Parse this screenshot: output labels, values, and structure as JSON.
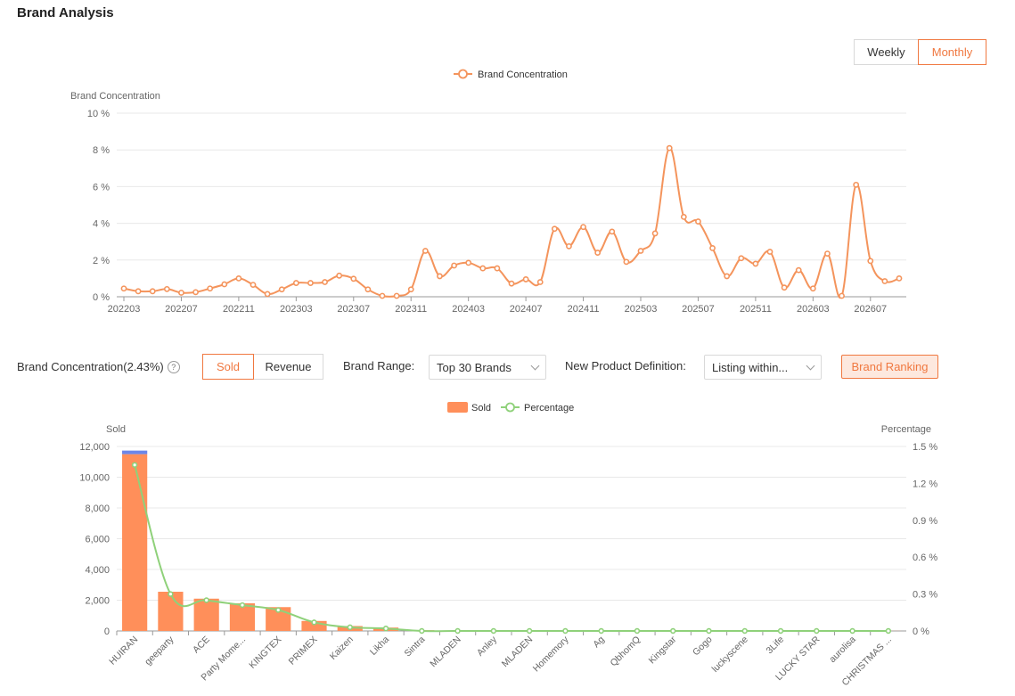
{
  "page": {
    "title": "Brand Analysis"
  },
  "period_toggle": {
    "weekly": "Weekly",
    "monthly": "Monthly",
    "active": "monthly"
  },
  "concentration_chart": {
    "legend": "Brand Concentration",
    "color": "#f4945c",
    "chart_data": {
      "type": "line",
      "ylabel": "Brand Concentration",
      "ylim": [
        0,
        10
      ],
      "y_ticks": [
        "0 %",
        "2 %",
        "4 %",
        "6 %",
        "8 %",
        "10 %"
      ],
      "x_tick_labels": [
        "202203",
        "202207",
        "202211",
        "202303",
        "202307",
        "202311",
        "202403",
        "202407",
        "202411",
        "202503",
        "202507",
        "202511",
        "202603",
        "202607"
      ],
      "x": [
        "202203",
        "202204",
        "202205",
        "202206",
        "202207",
        "202208",
        "202209",
        "202210",
        "202211",
        "202212",
        "202301",
        "202302",
        "202303",
        "202304",
        "202305",
        "202306",
        "202307",
        "202308",
        "202309",
        "202310",
        "202311",
        "202312",
        "202401",
        "202402",
        "202403",
        "202404",
        "202405",
        "202406",
        "202407",
        "202408",
        "202409",
        "202410",
        "202411",
        "202412",
        "202501",
        "202502",
        "202503",
        "202504",
        "202505",
        "202506",
        "202507",
        "202508",
        "202509",
        "202510",
        "202511",
        "202512",
        "202601",
        "202602",
        "202603",
        "202604",
        "202605",
        "202606",
        "202607",
        "202608",
        "202609"
      ],
      "series": [
        {
          "name": "Brand Concentration",
          "values": [
            0.45,
            0.3,
            0.3,
            0.42,
            0.22,
            0.25,
            0.45,
            0.68,
            1.0,
            0.65,
            0.15,
            0.4,
            0.75,
            0.75,
            0.8,
            1.15,
            0.98,
            0.4,
            0.05,
            0.05,
            0.4,
            2.5,
            1.12,
            1.7,
            1.85,
            1.55,
            1.55,
            0.72,
            0.95,
            0.8,
            3.7,
            2.75,
            3.8,
            2.4,
            3.55,
            1.9,
            2.5,
            3.45,
            8.1,
            4.35,
            4.1,
            2.65,
            1.12,
            2.1,
            1.8,
            2.45,
            0.5,
            1.45,
            0.45,
            2.35,
            0.05,
            6.1,
            1.95,
            0.85,
            1.0
          ]
        }
      ]
    }
  },
  "controls": {
    "concentration_label": "Brand Concentration(2.43%)",
    "help_icon": "?",
    "metric": {
      "sold": "Sold",
      "revenue": "Revenue",
      "active": "sold"
    },
    "brand_range_label": "Brand Range:",
    "brand_range_value": "Top 30 Brands",
    "new_product_label": "New Product Definition:",
    "new_product_value": "Listing within...",
    "ranking_button": "Brand Ranking"
  },
  "ranking_chart": {
    "legend_sold": "Sold",
    "legend_pct": "Percentage",
    "bar_color": "#ff8f5a",
    "bar_top_color": "#6c86e8",
    "line_color": "#8fd17a",
    "chart_data": {
      "type": "bar",
      "ylabel": "Sold",
      "y2label": "Percentage",
      "ylim": [
        0,
        12000
      ],
      "y2lim": [
        0,
        1.5
      ],
      "y_ticks": [
        "0",
        "2,000",
        "4,000",
        "6,000",
        "8,000",
        "10,000",
        "12,000"
      ],
      "y2_ticks": [
        "0 %",
        "0.3 %",
        "0.6 %",
        "0.9 %",
        "1.2 %",
        "1.5 %"
      ],
      "categories": [
        "HUIRAN",
        "geeparty",
        "ACE",
        "Party Mome...",
        "KINGTEX",
        "PRIMEX",
        "Kaizen",
        "Likha",
        "Sintra",
        "MLADEN",
        "Anley",
        "MLADEN",
        "Homemory",
        "Ag",
        "QbhomQ",
        "Kingstar",
        "Gogo",
        "luckyscene",
        "3Life",
        "LUCKY STAR",
        "aurolisa",
        "CHRISTMAS ..."
      ],
      "series": [
        {
          "name": "Sold",
          "values": [
            11500,
            2550,
            2100,
            1800,
            1550,
            650,
            320,
            220,
            50,
            30,
            25,
            20,
            15,
            15,
            10,
            10,
            10,
            8,
            8,
            6,
            5,
            5
          ]
        },
        {
          "name": "Percentage",
          "values": [
            1.35,
            0.3,
            0.25,
            0.21,
            0.17,
            0.07,
            0.03,
            0.02,
            0,
            0,
            0,
            0,
            0,
            0,
            0,
            0,
            0,
            0,
            0,
            0,
            0,
            0
          ]
        }
      ]
    }
  }
}
